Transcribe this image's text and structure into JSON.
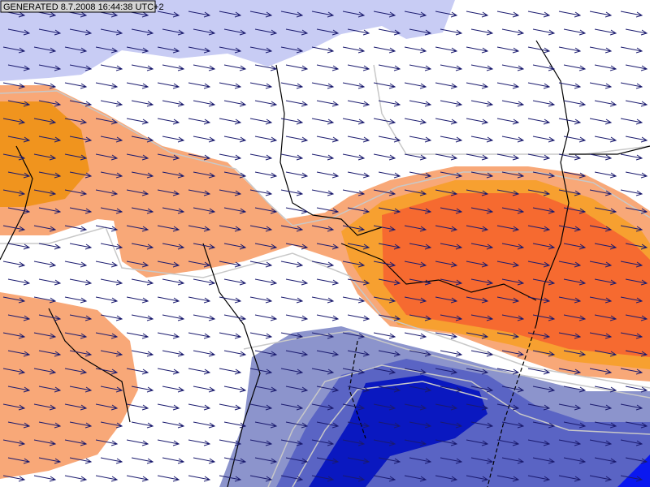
{
  "header": {
    "generated": "GENERATED 8.7.2008 16:44:38 UTC+2"
  }
}
